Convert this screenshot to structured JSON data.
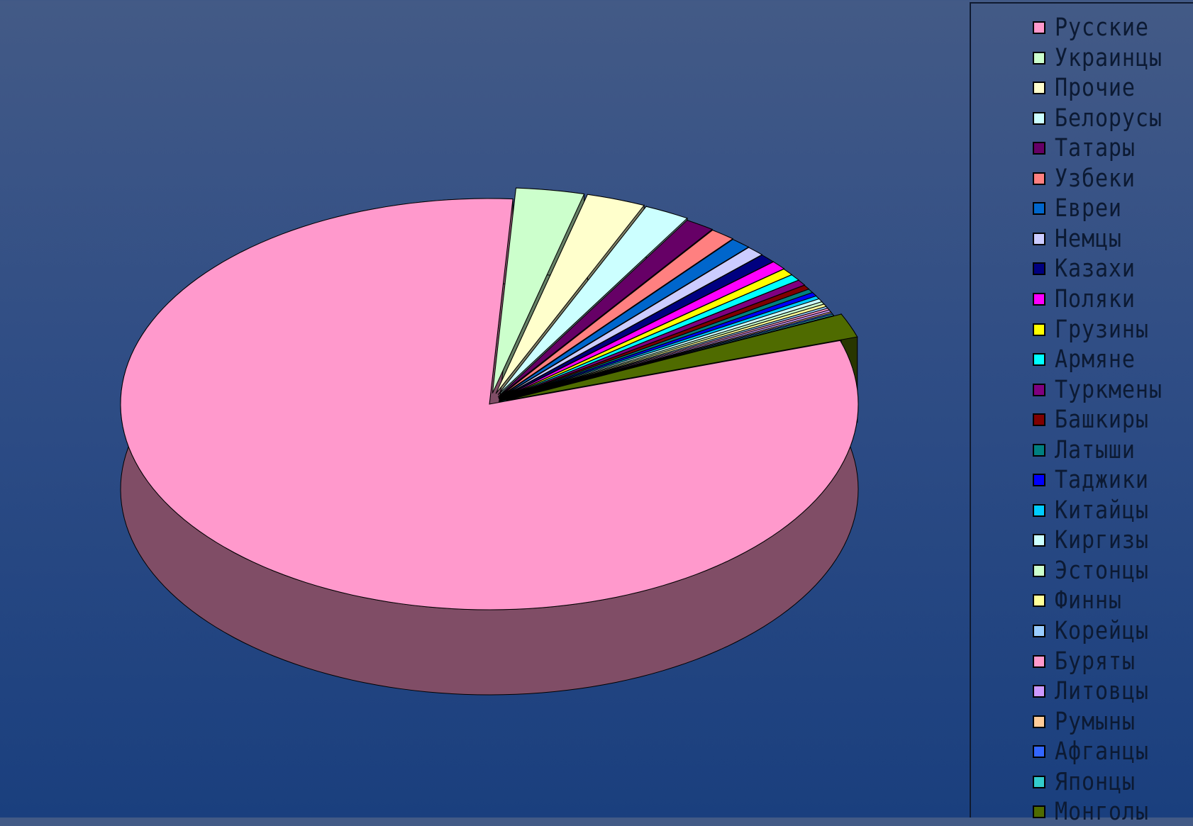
{
  "chart_data": {
    "type": "pie",
    "title": "",
    "exploded": true,
    "three_d": true,
    "legend_position": "right",
    "series": [
      {
        "name": "Русские",
        "value": 81.5,
        "color": "#ff99cc"
      },
      {
        "name": "Украинцы",
        "value": 3.0,
        "color": "#ccffcc"
      },
      {
        "name": "Прочие",
        "value": 2.6,
        "color": "#ffffcc"
      },
      {
        "name": "Белорусы",
        "value": 2.0,
        "color": "#ccffff"
      },
      {
        "name": "Татары",
        "value": 1.3,
        "color": "#660066"
      },
      {
        "name": "Узбеки",
        "value": 1.1,
        "color": "#ff8080"
      },
      {
        "name": "Евреи",
        "value": 0.9,
        "color": "#0066cc"
      },
      {
        "name": "Немцы",
        "value": 0.8,
        "color": "#ccccff"
      },
      {
        "name": "Казахи",
        "value": 0.7,
        "color": "#000080"
      },
      {
        "name": "Поляки",
        "value": 0.7,
        "color": "#ff00ff"
      },
      {
        "name": "Грузины",
        "value": 0.55,
        "color": "#ffff00"
      },
      {
        "name": "Армяне",
        "value": 0.5,
        "color": "#00ffff"
      },
      {
        "name": "Туркмены",
        "value": 0.45,
        "color": "#800080"
      },
      {
        "name": "Башкиры",
        "value": 0.35,
        "color": "#800000"
      },
      {
        "name": "Латыши",
        "value": 0.3,
        "color": "#008080"
      },
      {
        "name": "Таджики",
        "value": 0.3,
        "color": "#0000ff"
      },
      {
        "name": "Китайцы",
        "value": 0.25,
        "color": "#00ccff"
      },
      {
        "name": "Киргизы",
        "value": 0.25,
        "color": "#ccffff"
      },
      {
        "name": "Эстонцы",
        "value": 0.2,
        "color": "#ccffcc"
      },
      {
        "name": "Финны",
        "value": 0.2,
        "color": "#ffff99"
      },
      {
        "name": "Корейцы",
        "value": 0.15,
        "color": "#99ccff"
      },
      {
        "name": "Буряты",
        "value": 0.15,
        "color": "#ff99cc"
      },
      {
        "name": "Литовцы",
        "value": 0.15,
        "color": "#cc99ff"
      },
      {
        "name": "Румыны",
        "value": 0.1,
        "color": "#ffcc99"
      },
      {
        "name": "Афганцы",
        "value": 0.1,
        "color": "#3366ff"
      },
      {
        "name": "Японцы",
        "value": 0.1,
        "color": "#33cccc"
      },
      {
        "name": "Монголы",
        "value": 1.9,
        "color": "#4f6b00"
      }
    ]
  }
}
